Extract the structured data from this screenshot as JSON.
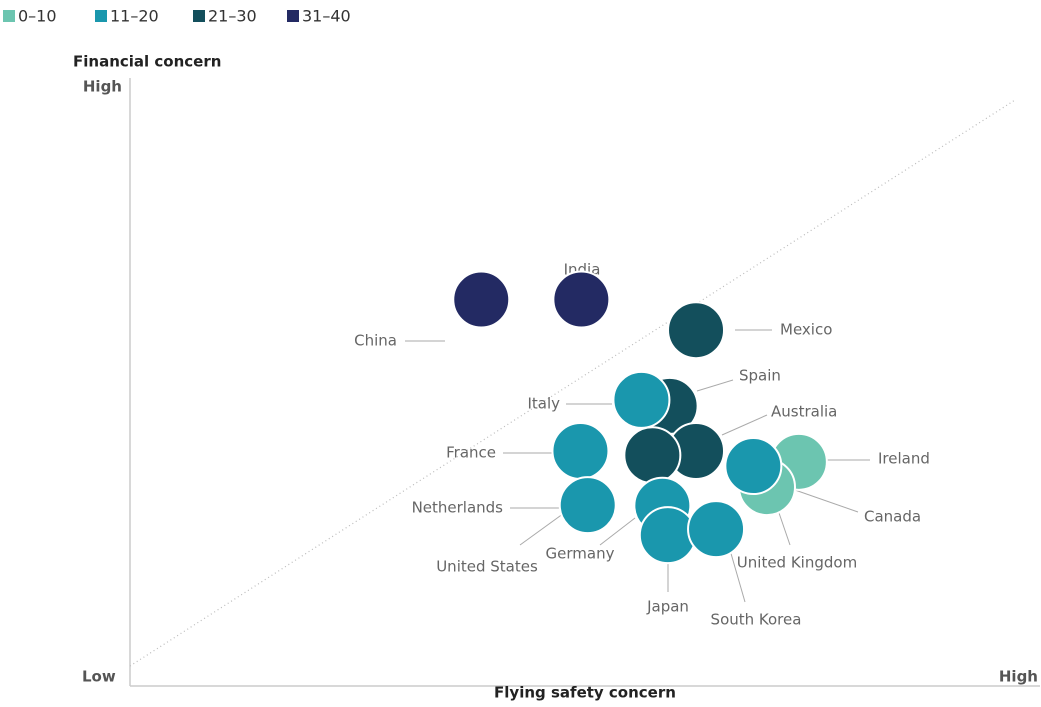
{
  "chart_data": {
    "type": "scatter",
    "y_label": "Financial concern",
    "x_label": "Flying safety concern",
    "xlim": [
      0,
      100
    ],
    "ylim": [
      0,
      100
    ],
    "xticks": [
      {
        "value": 0,
        "label": "Low"
      },
      {
        "value": 100,
        "label": "High"
      }
    ],
    "yticks": [
      {
        "value": 100,
        "label": "High"
      }
    ],
    "series": [
      {
        "name": "0–10",
        "color": "#6cc5b0",
        "labels": [
          "Ireland",
          "Canada"
        ],
        "x": [
          73.5,
          70.0
        ],
        "y": [
          37.3,
          33.1
        ]
      },
      {
        "name": "11–20",
        "color": "#1a97ad",
        "labels": [
          "Italy",
          "France",
          "Netherlands",
          "Germany",
          "Japan",
          "South Korea",
          "United Kingdom"
        ],
        "x": [
          56.2,
          49.5,
          50.3,
          58.5,
          59.1,
          64.4,
          68.5
        ],
        "y": [
          47.6,
          39.1,
          30.1,
          30.0,
          25.1,
          26.1,
          36.6
        ]
      },
      {
        "name": "21–30",
        "color": "#134f5c",
        "labels": [
          "Mexico",
          "Spain",
          "Australia",
          "United States"
        ],
        "x": [
          62.2,
          59.3,
          62.2,
          57.4
        ],
        "y": [
          59.2,
          46.6,
          39.1,
          38.4
        ]
      },
      {
        "name": "31–40",
        "color": "#232a63",
        "labels": [
          "China",
          "India"
        ],
        "x": [
          38.6,
          49.6
        ],
        "y": [
          64.3,
          64.3
        ]
      }
    ]
  }
}
